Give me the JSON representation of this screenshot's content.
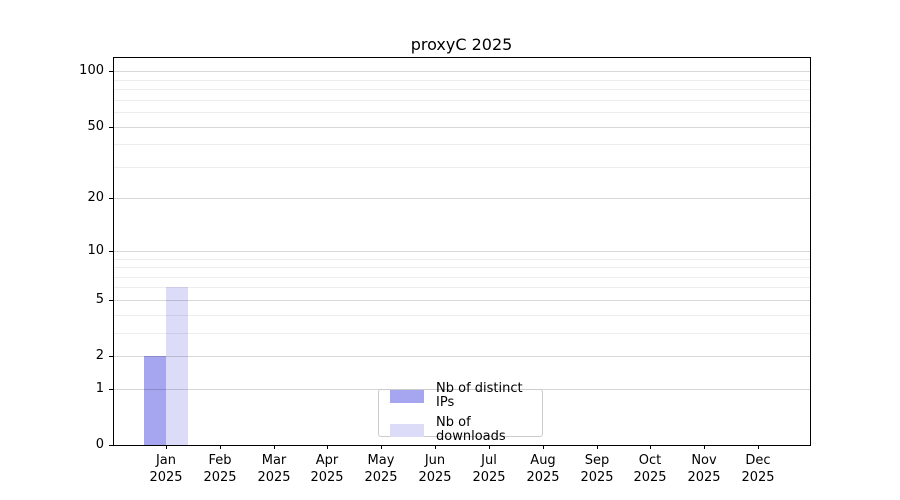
{
  "chart_data": {
    "type": "bar",
    "title": "proxyC 2025",
    "year": "2025",
    "categories": [
      "Jan",
      "Feb",
      "Mar",
      "Apr",
      "May",
      "Jun",
      "Jul",
      "Aug",
      "Sep",
      "Oct",
      "Nov",
      "Dec"
    ],
    "series": [
      {
        "name": "Nb of distinct IPs",
        "color": "#a5a5f0",
        "values": [
          2,
          0,
          0,
          0,
          0,
          0,
          0,
          0,
          0,
          0,
          0,
          0
        ]
      },
      {
        "name": "Nb of downloads",
        "color": "#dcdcf8",
        "values": [
          6,
          0,
          0,
          0,
          0,
          0,
          0,
          0,
          0,
          0,
          0,
          0
        ]
      }
    ],
    "yscale": "log1p",
    "ylim": [
      0,
      118
    ],
    "y_major_ticks": [
      0,
      1,
      2,
      5,
      10,
      20,
      50,
      100
    ],
    "y_minor_ticks": [
      3,
      4,
      6,
      7,
      8,
      9,
      30,
      40,
      60,
      70,
      80,
      90
    ],
    "grid": "horizontal",
    "legend_position": "lower center",
    "axis_color": "#000000",
    "background_color": "#ffffff"
  }
}
